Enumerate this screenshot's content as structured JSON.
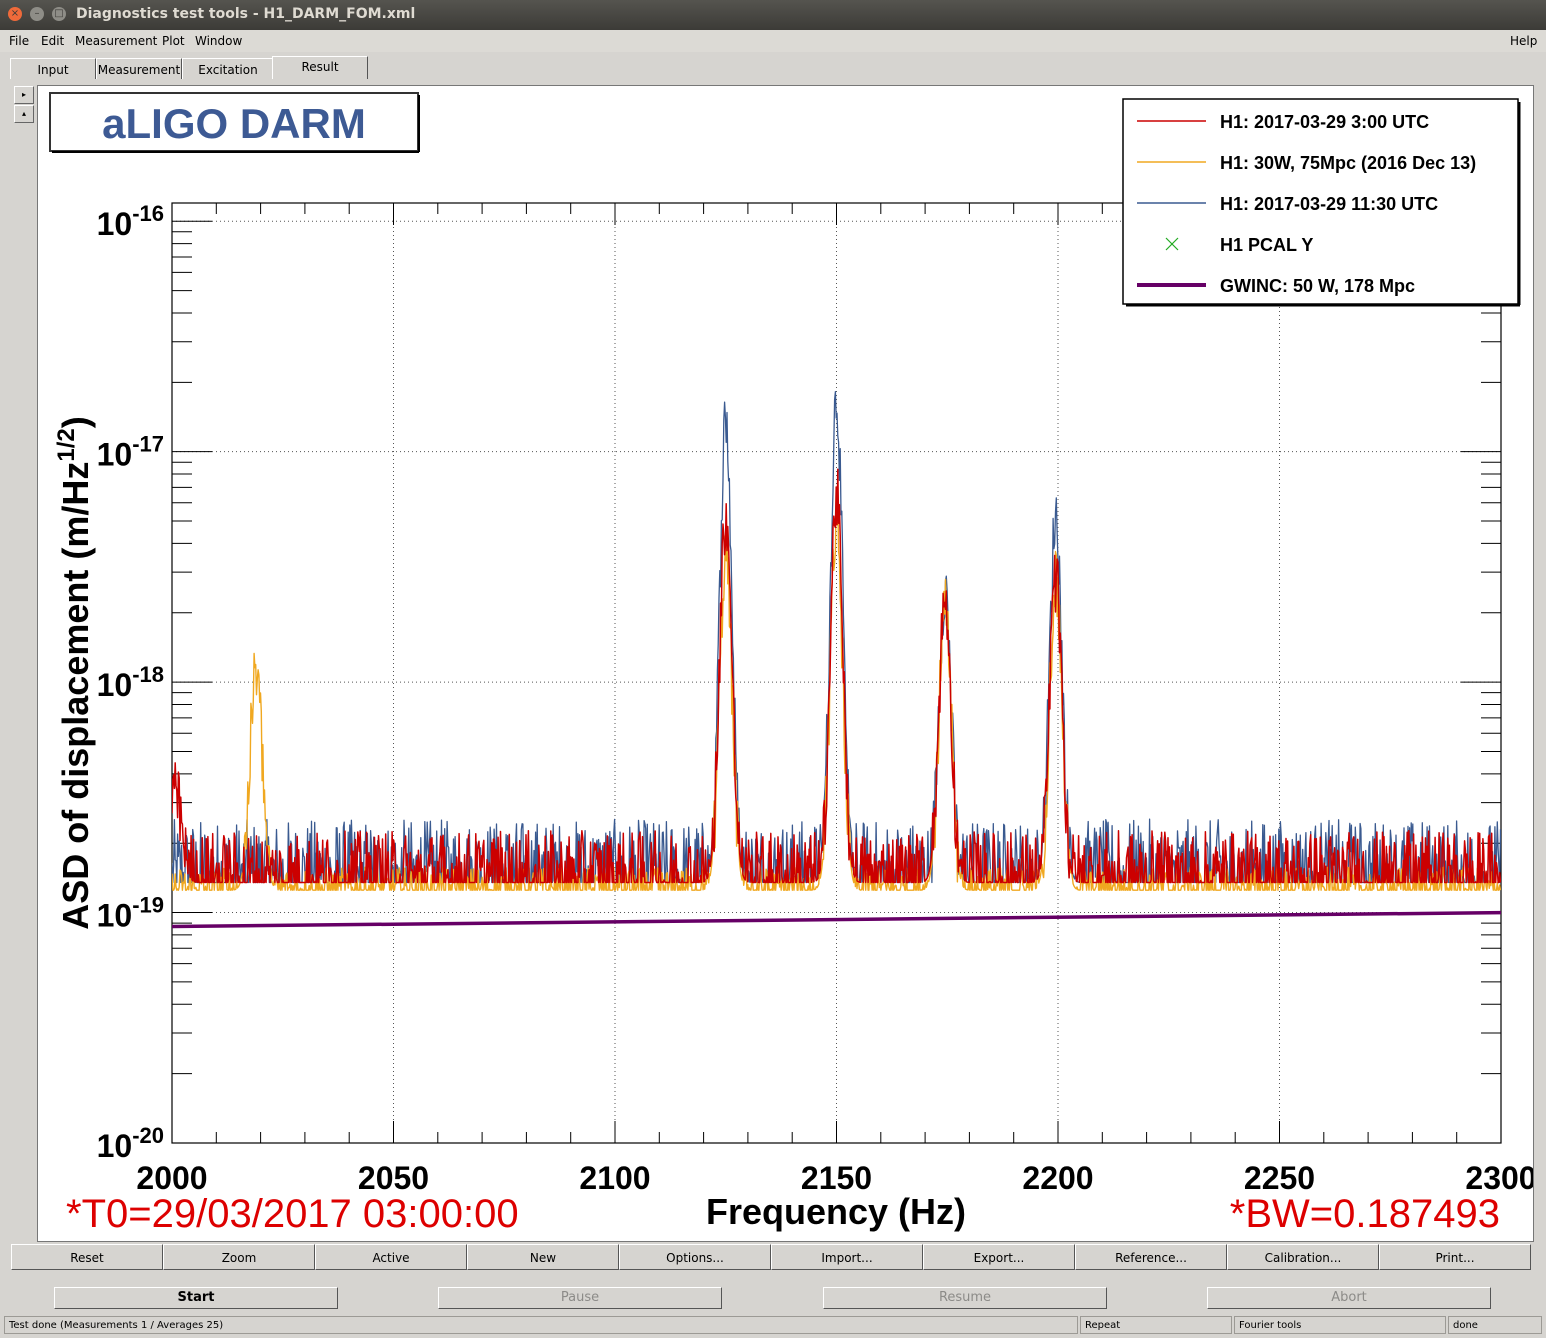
{
  "window": {
    "title": "Diagnostics test tools - H1_DARM_FOM.xml"
  },
  "menu": {
    "file": "File",
    "edit": "Edit",
    "measurement": "Measurement",
    "plot": "Plot",
    "window": "Window",
    "help": "Help"
  },
  "tabs": [
    "Input",
    "Measurement",
    "Excitation",
    "Result"
  ],
  "side_buttons": [
    "▸",
    "▴"
  ],
  "plot": {
    "title_box": "aLIGO DARM",
    "legend": [
      {
        "label": "H1: 2017-03-29 3:00 UTC",
        "color": "#cc0000",
        "style": "line"
      },
      {
        "label": "H1: 30W, 75Mpc (2016 Dec 13)",
        "color": "#f0a820",
        "style": "line"
      },
      {
        "label": "H1: 2017-03-29 11:30 UTC",
        "color": "#3a5a90",
        "style": "line"
      },
      {
        "label": "H1 PCAL Y",
        "color": "#22aa22",
        "style": "marker"
      },
      {
        "label": "GWINC: 50 W, 178 Mpc",
        "color": "#660066",
        "style": "thick"
      }
    ],
    "t0": "*T0=29/03/2017 03:00:00",
    "bw": "*BW=0.187493"
  },
  "chart_data": {
    "type": "line",
    "title": "aLIGO DARM",
    "xlabel": "Frequency (Hz)",
    "ylabel": "ASD of displacement (m/Hz^1/2)",
    "xlim": [
      2000,
      2300
    ],
    "ylim": [
      1e-20,
      1.2e-16
    ],
    "yscale": "log",
    "grid": true,
    "legend_position": "top-right",
    "xticks": [
      "2000",
      "2050",
      "2100",
      "2150",
      "2200",
      "2250",
      "2300"
    ],
    "yticks": [
      {
        "base": "10",
        "exp": "-16",
        "value": 1e-16
      },
      {
        "base": "10",
        "exp": "-17",
        "value": 1e-17
      },
      {
        "base": "10",
        "exp": "-18",
        "value": 1e-18
      },
      {
        "base": "10",
        "exp": "-19",
        "value": 1e-19
      },
      {
        "base": "10",
        "exp": "-20",
        "value": 1e-20
      }
    ],
    "series": [
      {
        "name": "H1: 2017-03-29 11:30 UTC",
        "color": "#3a5a90",
        "width": 1.3,
        "baseline": 1.35e-19,
        "noise": 0.55,
        "peaks": [
          {
            "x": 2125,
            "y": 1.4e-17
          },
          {
            "x": 2150,
            "y": 1.75e-17
          },
          {
            "x": 2174.5,
            "y": 2.6e-18
          },
          {
            "x": 2199.5,
            "y": 5.3e-18
          }
        ]
      },
      {
        "name": "H1: 30W, 75Mpc (2016 Dec 13)",
        "color": "#f0a820",
        "width": 1.4,
        "baseline": 1.25e-19,
        "noise": 0.2,
        "peaks": [
          {
            "x": 2019,
            "y": 1.1e-18
          },
          {
            "x": 2125,
            "y": 3.5e-18
          },
          {
            "x": 2150,
            "y": 5e-18
          },
          {
            "x": 2174.5,
            "y": 2e-18
          },
          {
            "x": 2199.5,
            "y": 2.8e-18
          }
        ]
      },
      {
        "name": "H1: 2017-03-29 3:00 UTC",
        "color": "#cc0000",
        "width": 1.5,
        "baseline": 1.35e-19,
        "noise": 0.45,
        "peaks": [
          {
            "x": 2000.8,
            "y": 3.2e-19
          },
          {
            "x": 2125,
            "y": 5.3e-18
          },
          {
            "x": 2150,
            "y": 6.5e-18
          },
          {
            "x": 2174.5,
            "y": 2.3e-18
          },
          {
            "x": 2199.5,
            "y": 2.8e-18
          }
        ]
      },
      {
        "name": "GWINC: 50 W, 178 Mpc",
        "color": "#660066",
        "width": 3.5,
        "line": [
          [
            2000,
            8.7e-20
          ],
          [
            2300,
            1e-19
          ]
        ]
      }
    ]
  },
  "toolbar": [
    "Reset",
    "Zoom",
    "Active",
    "New",
    "Options...",
    "Import...",
    "Export...",
    "Reference...",
    "Calibration...",
    "Print..."
  ],
  "controls": {
    "start": "Start",
    "pause": "Pause",
    "resume": "Resume",
    "abort": "Abort"
  },
  "status": {
    "main": "Test done (Measurements 1 / Averages 25)",
    "repeat": "Repeat",
    "fourier": "Fourier tools",
    "done": "done"
  }
}
